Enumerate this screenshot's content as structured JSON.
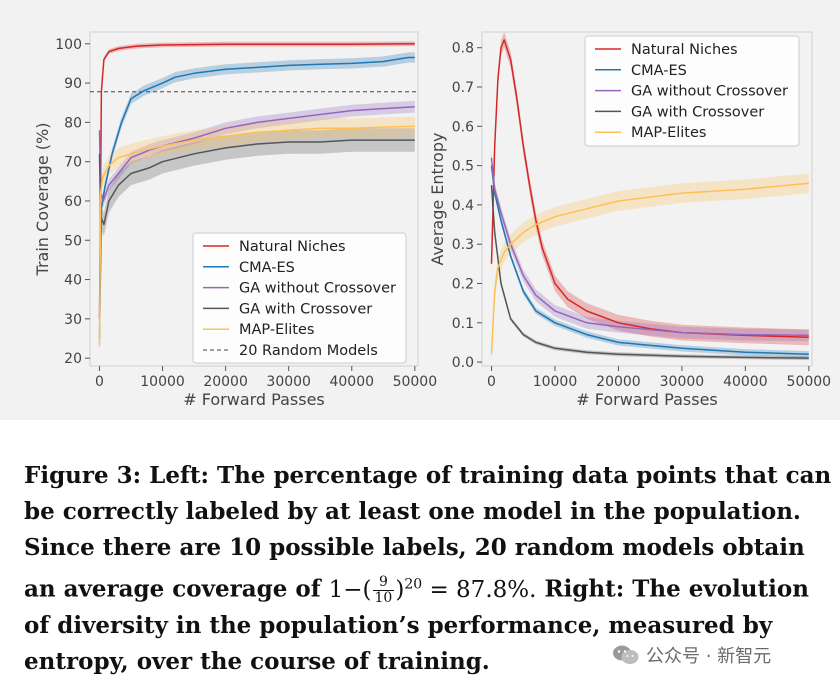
{
  "caption": {
    "figure_label": "Figure 3:",
    "line1_rest": "Left: The percentage of training data points that can",
    "line2": "be correctly labeled by at least one model in the population.",
    "line3": "Since there are 10 possible labels, 20 random models obtain",
    "line4_pre": "an average coverage of",
    "formula_prefix": "1−(",
    "formula_num": "9",
    "formula_den": "10",
    "formula_close": ")",
    "formula_exp": "20",
    "formula_eq": "= 87.8%.",
    "line4_post": "Right: The evolution",
    "line5": "of diversity in the population’s performance, measured by",
    "line6": "entropy, over the course of training."
  },
  "watermark": {
    "text": "公众号 · 新智元",
    "icon": "wechat-icon"
  },
  "colors": {
    "natural_niches": "#d62728",
    "cma_es": "#1f77b4",
    "ga_without_crossover": "#9467bd",
    "ga_with_crossover": "#555555",
    "map_elites": "#ffbf55",
    "random_line": "#444444"
  },
  "chart_data": [
    {
      "type": "line",
      "xlabel": "# Forward Passes",
      "ylabel": "Train Coverage (%)",
      "xlim": [
        -1500,
        50500
      ],
      "ylim": [
        18,
        103
      ],
      "xticks": [
        0,
        10000,
        20000,
        30000,
        40000,
        50000
      ],
      "xtick_labels": [
        "0",
        "10000",
        "20000",
        "30000",
        "40000",
        "50000"
      ],
      "yticks": [
        20,
        30,
        40,
        50,
        60,
        70,
        80,
        90,
        100
      ],
      "ytick_labels": [
        "20",
        "30",
        "40",
        "50",
        "60",
        "70",
        "80",
        "90",
        "100"
      ],
      "legend_position": "lower-right",
      "legend": [
        "Natural Niches",
        "CMA-ES",
        "GA without Crossover",
        "GA with Crossover",
        "MAP-Elites",
        "20 Random Models"
      ],
      "hline": {
        "y": 87.8,
        "label": "20 Random Models",
        "style": "dashed"
      },
      "series": [
        {
          "name": "Natural Niches",
          "color_key": "natural_niches",
          "x": [
            0,
            300,
            700,
            1500,
            3000,
            6000,
            10000,
            15000,
            20000,
            30000,
            40000,
            50000
          ],
          "y": [
            30,
            88,
            96,
            98,
            98.8,
            99.4,
            99.7,
            99.8,
            99.9,
            99.9,
            99.9,
            100
          ],
          "band": 0.6
        },
        {
          "name": "CMA-ES",
          "color_key": "cma_es",
          "x": [
            0,
            300,
            800,
            2000,
            3500,
            5000,
            7000,
            10000,
            12000,
            15000,
            20000,
            25000,
            30000,
            35000,
            40000,
            45000,
            49000,
            50000
          ],
          "y": [
            25,
            58,
            63,
            72,
            80,
            86,
            88,
            90,
            91.5,
            92.5,
            93.5,
            94,
            94.5,
            94.8,
            95,
            95.5,
            96.5,
            96.5
          ],
          "band": 1.3
        },
        {
          "name": "GA without Crossover",
          "color_key": "ga_without_crossover",
          "x": [
            0,
            200,
            600,
            1500,
            3000,
            5000,
            8000,
            10000,
            15000,
            20000,
            25000,
            30000,
            35000,
            40000,
            45000,
            50000
          ],
          "y": [
            78,
            62,
            60,
            64,
            67,
            71,
            73,
            74,
            76,
            78.5,
            80,
            81,
            82,
            83,
            83.5,
            84
          ],
          "band": 1.5
        },
        {
          "name": "GA with Crossover",
          "color_key": "ga_with_crossover",
          "x": [
            0,
            200,
            700,
            1500,
            3000,
            5000,
            8000,
            10000,
            15000,
            20000,
            25000,
            30000,
            35000,
            40000,
            45000,
            50000
          ],
          "y": [
            72,
            56,
            54,
            60,
            64,
            67,
            68.5,
            70,
            72,
            73.5,
            74.5,
            75,
            75,
            75.5,
            75.5,
            75.5
          ],
          "band": 3
        },
        {
          "name": "MAP-Elites",
          "color_key": "map_elites",
          "x": [
            0,
            200,
            500,
            1500,
            3000,
            6000,
            10000,
            15000,
            20000,
            25000,
            30000,
            35000,
            40000,
            45000,
            50000
          ],
          "y": [
            23,
            62,
            66,
            69,
            71,
            72.5,
            74,
            75.5,
            76.5,
            77.5,
            78,
            78.5,
            78.5,
            78.8,
            79
          ],
          "band": 2.5
        }
      ]
    },
    {
      "type": "line",
      "xlabel": "# Forward Passes",
      "ylabel": "Average Entropy",
      "xlim": [
        -1500,
        50500
      ],
      "ylim": [
        -0.01,
        0.84
      ],
      "xticks": [
        0,
        10000,
        20000,
        30000,
        40000,
        50000
      ],
      "xtick_labels": [
        "0",
        "10000",
        "20000",
        "30000",
        "40000",
        "50000"
      ],
      "yticks": [
        0.0,
        0.1,
        0.2,
        0.3,
        0.4,
        0.5,
        0.6,
        0.7,
        0.8
      ],
      "ytick_labels": [
        "0.0",
        "0.1",
        "0.2",
        "0.3",
        "0.4",
        "0.5",
        "0.6",
        "0.7",
        "0.8"
      ],
      "legend_position": "top-right",
      "legend": [
        "Natural Niches",
        "CMA-ES",
        "GA without Crossover",
        "GA with Crossover",
        "MAP-Elites"
      ],
      "series": [
        {
          "name": "Natural Niches",
          "color_key": "natural_niches",
          "x": [
            0,
            500,
            1000,
            1500,
            2000,
            3000,
            4000,
            5000,
            6000,
            7000,
            8000,
            10000,
            12000,
            15000,
            20000,
            25000,
            30000,
            40000,
            50000
          ],
          "y": [
            0.25,
            0.55,
            0.72,
            0.8,
            0.82,
            0.77,
            0.67,
            0.55,
            0.45,
            0.36,
            0.29,
            0.2,
            0.16,
            0.13,
            0.1,
            0.085,
            0.075,
            0.068,
            0.063
          ],
          "band": 0.02
        },
        {
          "name": "CMA-ES",
          "color_key": "cma_es",
          "x": [
            0,
            500,
            1500,
            3000,
            5000,
            7000,
            10000,
            15000,
            20000,
            30000,
            40000,
            50000
          ],
          "y": [
            0.5,
            0.43,
            0.36,
            0.27,
            0.18,
            0.13,
            0.1,
            0.07,
            0.05,
            0.035,
            0.025,
            0.02
          ],
          "band": 0.008
        },
        {
          "name": "GA without Crossover",
          "color_key": "ga_without_crossover",
          "x": [
            0,
            500,
            1500,
            3000,
            5000,
            7000,
            10000,
            15000,
            20000,
            30000,
            40000,
            50000
          ],
          "y": [
            0.52,
            0.44,
            0.38,
            0.3,
            0.22,
            0.17,
            0.13,
            0.1,
            0.09,
            0.075,
            0.07,
            0.068
          ],
          "band": 0.015
        },
        {
          "name": "GA with Crossover",
          "color_key": "ga_with_crossover",
          "x": [
            0,
            500,
            1500,
            3000,
            5000,
            7000,
            10000,
            15000,
            20000,
            30000,
            40000,
            50000
          ],
          "y": [
            0.45,
            0.33,
            0.2,
            0.11,
            0.07,
            0.05,
            0.035,
            0.025,
            0.02,
            0.015,
            0.012,
            0.01
          ],
          "band": 0.005
        },
        {
          "name": "MAP-Elites",
          "color_key": "map_elites",
          "x": [
            0,
            500,
            1000,
            2000,
            3000,
            5000,
            7000,
            10000,
            15000,
            20000,
            25000,
            30000,
            40000,
            50000
          ],
          "y": [
            0.02,
            0.18,
            0.24,
            0.28,
            0.3,
            0.33,
            0.35,
            0.37,
            0.39,
            0.41,
            0.42,
            0.43,
            0.44,
            0.455
          ],
          "band": 0.025
        }
      ]
    }
  ]
}
